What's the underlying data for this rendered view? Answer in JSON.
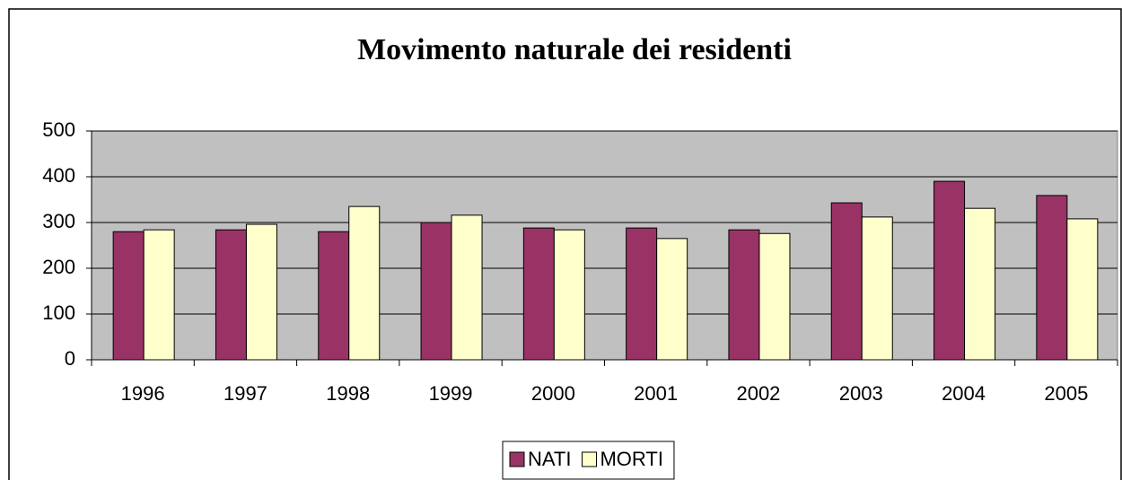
{
  "chart_data": {
    "type": "bar",
    "title": "Movimento naturale dei residenti",
    "categories": [
      "1996",
      "1997",
      "1998",
      "1999",
      "2000",
      "2001",
      "2002",
      "2003",
      "2004",
      "2005"
    ],
    "series": [
      {
        "name": "NATI",
        "color": "#993366",
        "values": [
          280,
          284,
          280,
          300,
          288,
          288,
          284,
          343,
          390,
          359
        ]
      },
      {
        "name": "MORTI",
        "color": "#FFFFCC",
        "values": [
          284,
          296,
          335,
          316,
          284,
          265,
          276,
          312,
          331,
          308
        ]
      }
    ],
    "ylim": [
      0,
      500
    ],
    "yticks": [
      0,
      100,
      200,
      300,
      400,
      500
    ],
    "grid": true,
    "legend": "bottom"
  }
}
